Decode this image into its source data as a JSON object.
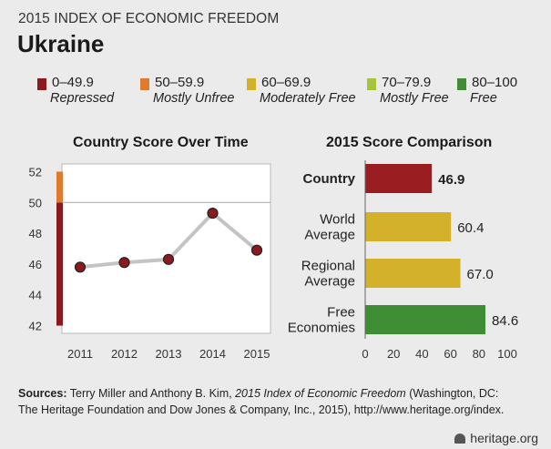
{
  "header": {
    "overline": "2015 INDEX OF ECONOMIC FREEDOM",
    "title": "Ukraine"
  },
  "legend": [
    {
      "range": "0–49.9",
      "label": "Repressed",
      "color": "#8b1a1e"
    },
    {
      "range": "50–59.9",
      "label": "Mostly Unfree",
      "color": "#e07a2e"
    },
    {
      "range": "60–69.9",
      "label": "Moderately Free",
      "color": "#d4b12a"
    },
    {
      "range": "70–79.9",
      "label": "Mostly Free",
      "color": "#a4c43c"
    },
    {
      "range": "80–100",
      "label": "Free",
      "color": "#3f8e36"
    }
  ],
  "chart_data": [
    {
      "type": "line",
      "title": "Country Score Over Time",
      "x": [
        "2011",
        "2012",
        "2013",
        "2014",
        "2015"
      ],
      "series": [
        {
          "name": "Ukraine",
          "values": [
            45.8,
            46.1,
            46.3,
            49.3,
            46.9
          ]
        }
      ],
      "ylim": [
        41.5,
        52.5
      ],
      "yticks": [
        42,
        44,
        46,
        48,
        50,
        52
      ],
      "band_colors": {
        "repressed": "#8b1a1e",
        "mostly_unfree": "#e07a2e"
      },
      "reference_line": 50,
      "line_color": "#c4c4c4",
      "marker_color": "#8b1a1e",
      "xlabel": "",
      "ylabel": ""
    },
    {
      "type": "bar",
      "orientation": "horizontal",
      "title": "2015 Score Comparison",
      "categories": [
        "Country",
        "World Average",
        "Regional Average",
        "Free Economies"
      ],
      "category_lines": [
        [
          "Country"
        ],
        [
          "World",
          "Average"
        ],
        [
          "Regional",
          "Average"
        ],
        [
          "Free",
          "Economies"
        ]
      ],
      "values": [
        46.9,
        60.4,
        67.0,
        84.6
      ],
      "value_labels": [
        "46.9",
        "60.4",
        "67.0",
        "84.6"
      ],
      "colors": [
        "#9a1d22",
        "#d4b12a",
        "#d4b12a",
        "#3f8e36"
      ],
      "xlim": [
        0,
        100
      ],
      "xticks": [
        "0",
        "20",
        "40",
        "60",
        "80",
        "100"
      ],
      "xlabel": "",
      "ylabel": ""
    }
  ],
  "footer": {
    "sources_label": "Sources:",
    "line1_pre": "Terry Miller and Anthony B. Kim,",
    "line1_italic": "2015 Index of Economic Freedom",
    "line1_post": "(Washington, DC:",
    "line2": "The Heritage Foundation and Dow Jones & Company, Inc., 2015), http://www.heritage.org/index."
  },
  "brand": "heritage.org"
}
